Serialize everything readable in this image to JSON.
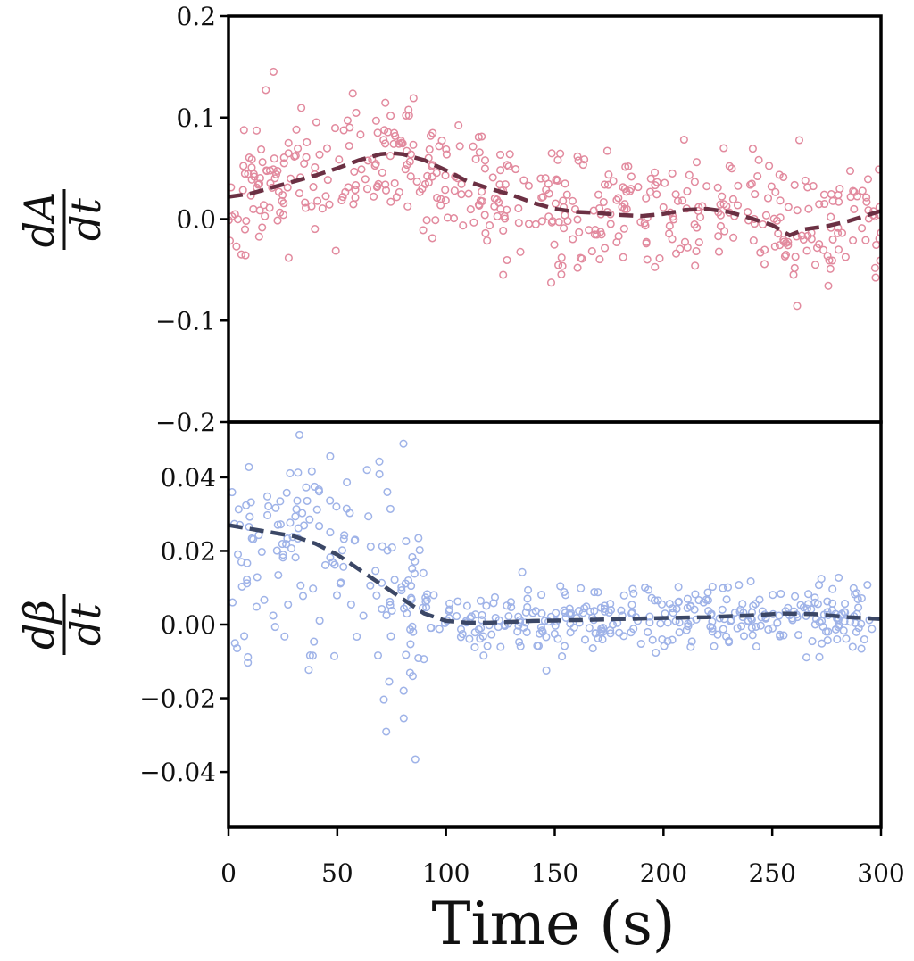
{
  "chart_data": {
    "type": "scatter",
    "xlabel": "Time (s)",
    "x_ticks": [
      0,
      50,
      100,
      150,
      200,
      250,
      300
    ],
    "xlim": [
      0,
      300
    ],
    "grid": false,
    "panels": [
      {
        "ylabel_numerator": "dA",
        "ylabel_denominator": "dt",
        "ylim": [
          -0.2,
          0.2
        ],
        "y_ticks": [
          0.2,
          0.1,
          0.0,
          -0.1,
          -0.2
        ],
        "y_tick_labels": [
          "0.2",
          "0.1",
          "0.0",
          "−0.1",
          "−0.2"
        ],
        "point_color": "#e28a9e",
        "trend_color": "#6b3043",
        "noise": {
          "sigma": 0.032,
          "seed": 11,
          "n": 500
        },
        "trend": [
          [
            0,
            0.022
          ],
          [
            10,
            0.025
          ],
          [
            20,
            0.031
          ],
          [
            30,
            0.037
          ],
          [
            40,
            0.043
          ],
          [
            50,
            0.05
          ],
          [
            60,
            0.058
          ],
          [
            70,
            0.064
          ],
          [
            75,
            0.065
          ],
          [
            80,
            0.064
          ],
          [
            90,
            0.058
          ],
          [
            100,
            0.048
          ],
          [
            110,
            0.037
          ],
          [
            120,
            0.03
          ],
          [
            130,
            0.024
          ],
          [
            140,
            0.016
          ],
          [
            150,
            0.01
          ],
          [
            160,
            0.007
          ],
          [
            170,
            0.006
          ],
          [
            180,
            0.004
          ],
          [
            190,
            0.003
          ],
          [
            200,
            0.005
          ],
          [
            210,
            0.009
          ],
          [
            220,
            0.01
          ],
          [
            230,
            0.007
          ],
          [
            240,
            0.001
          ],
          [
            250,
            -0.006
          ],
          [
            258,
            -0.016
          ],
          [
            265,
            -0.01
          ],
          [
            275,
            -0.007
          ],
          [
            285,
            -0.002
          ],
          [
            300,
            0.008
          ]
        ]
      },
      {
        "ylabel_numerator": "dβ",
        "ylabel_denominator": "dt",
        "ylim": [
          -0.055,
          0.055
        ],
        "y_ticks": [
          0.04,
          0.02,
          0.0,
          -0.02,
          -0.04
        ],
        "y_tick_labels": [
          "0.04",
          "0.02",
          "0.00",
          "−0.02",
          "−0.04"
        ],
        "point_color": "#9fb3e8",
        "trend_color": "#3b4766",
        "noise": {
          "sigma": 0.0045,
          "sigma_early": 0.016,
          "seed": 29,
          "n": 500
        },
        "trend": [
          [
            0,
            0.027
          ],
          [
            10,
            0.026
          ],
          [
            20,
            0.025
          ],
          [
            30,
            0.024
          ],
          [
            40,
            0.022
          ],
          [
            50,
            0.019
          ],
          [
            60,
            0.015
          ],
          [
            70,
            0.011
          ],
          [
            80,
            0.007
          ],
          [
            90,
            0.003
          ],
          [
            100,
            0.001
          ],
          [
            110,
            0.0005
          ],
          [
            120,
            0.0005
          ],
          [
            140,
            0.001
          ],
          [
            160,
            0.0012
          ],
          [
            180,
            0.0015
          ],
          [
            200,
            0.0018
          ],
          [
            220,
            0.002
          ],
          [
            240,
            0.0025
          ],
          [
            255,
            0.003
          ],
          [
            270,
            0.0028
          ],
          [
            285,
            0.002
          ],
          [
            300,
            0.0015
          ]
        ]
      }
    ]
  }
}
